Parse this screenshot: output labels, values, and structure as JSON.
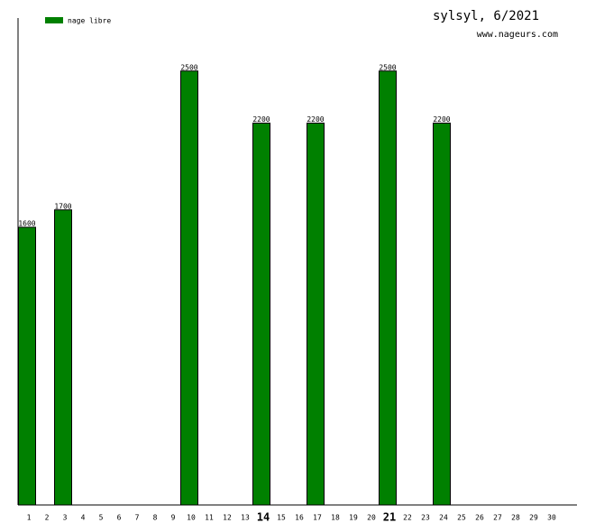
{
  "chart_data": {
    "type": "bar",
    "title": "sylsyl, 6/2021",
    "subtitle": "www.nageurs.com",
    "categories": [
      "1",
      "2",
      "3",
      "4",
      "5",
      "6",
      "7",
      "8",
      "9",
      "10",
      "11",
      "12",
      "13",
      "14",
      "15",
      "16",
      "17",
      "18",
      "19",
      "20",
      "21",
      "22",
      "23",
      "24",
      "25",
      "26",
      "27",
      "28",
      "29",
      "30"
    ],
    "series": [
      {
        "name": "nage libre",
        "color": "#008000",
        "values": [
          1600,
          null,
          1700,
          null,
          null,
          null,
          null,
          null,
          null,
          2500,
          null,
          null,
          null,
          2200,
          null,
          null,
          2200,
          null,
          null,
          null,
          2500,
          null,
          null,
          2200,
          null,
          null,
          null,
          null,
          null,
          null
        ]
      }
    ],
    "emphasized_categories": [
      13,
      20
    ],
    "ylim": [
      0,
      2800
    ]
  }
}
